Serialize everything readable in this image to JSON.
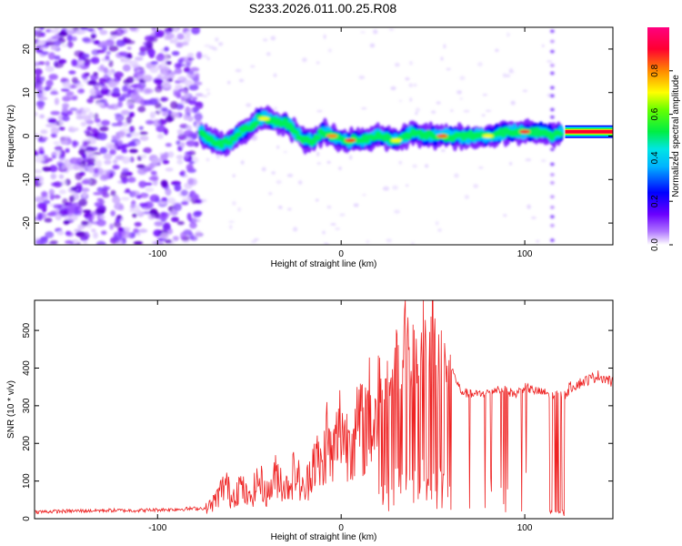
{
  "title": "S233.2026.011.00.25.R08",
  "chart_data": [
    {
      "type": "heatmap",
      "xlabel": "Height of straight line (km)",
      "ylabel": "Frequency (Hz)",
      "xlim": [
        -167,
        148
      ],
      "ylim": [
        -25,
        25
      ],
      "x_ticks": [
        -100,
        0,
        100
      ],
      "y_ticks": [
        -20,
        -10,
        0,
        10,
        20
      ],
      "colorbar": {
        "label": "Normalized spectral amplitude",
        "range": [
          0,
          1
        ],
        "ticks": [
          "0.0",
          "0.2",
          "0.4",
          "0.6",
          "0.8"
        ],
        "colormap": [
          "#ffffff",
          "#7a00ff",
          "#0000ff",
          "#00e5ff",
          "#00ff33",
          "#ffff00",
          "#ff8800",
          "#ff0033",
          "#ff0080"
        ]
      },
      "dominant_frequency_ridge": {
        "x": [
          -75,
          -70,
          -65,
          -60,
          -55,
          -50,
          -45,
          -40,
          -35,
          -30,
          -25,
          -20,
          -15,
          -10,
          -5,
          0,
          10,
          20,
          30,
          40,
          45,
          50,
          60,
          70,
          80,
          90,
          100,
          110,
          115,
          120,
          148
        ],
        "y": [
          0,
          -1,
          -2,
          -1,
          1,
          2,
          4,
          4,
          3,
          3,
          1,
          -1,
          -1,
          1,
          0,
          -1,
          -1,
          0,
          -1,
          1,
          0,
          0,
          0,
          0,
          0,
          1,
          1,
          1,
          0,
          1,
          1
        ]
      },
      "noise_region_x": [
        -167,
        -77
      ]
    },
    {
      "type": "line",
      "xlabel": "Height of straight line (km)",
      "ylabel": "SNR (10 * v/v)",
      "xlim": [
        -167,
        148
      ],
      "ylim": [
        0,
        580
      ],
      "x_ticks": [
        -100,
        0,
        100
      ],
      "y_ticks": [
        0,
        100,
        200,
        300,
        400,
        500
      ],
      "color": "#ee2222",
      "series": {
        "x": [
          -167,
          -150,
          -130,
          -110,
          -90,
          -75,
          -70,
          -65,
          -63,
          -60,
          -55,
          -50,
          -45,
          -40,
          -35,
          -30,
          -25,
          -20,
          -15,
          -10,
          -8,
          -5,
          0,
          3,
          5,
          8,
          10,
          12,
          15,
          18,
          20,
          22,
          25,
          28,
          30,
          32,
          35,
          38,
          40,
          42,
          45,
          47,
          50,
          52,
          55,
          58,
          60,
          65,
          70,
          75,
          80,
          85,
          90,
          95,
          100,
          105,
          110,
          115,
          116,
          118,
          120,
          122,
          125,
          130,
          135,
          140,
          145,
          148
        ],
        "y": [
          18,
          20,
          22,
          22,
          25,
          28,
          50,
          95,
          120,
          70,
          110,
          60,
          130,
          80,
          150,
          100,
          160,
          80,
          210,
          160,
          280,
          190,
          320,
          250,
          300,
          260,
          330,
          280,
          360,
          300,
          400,
          330,
          420,
          340,
          470,
          360,
          500,
          380,
          480,
          360,
          520,
          390,
          560,
          380,
          480,
          350,
          400,
          340,
          330,
          330,
          335,
          345,
          340,
          330,
          350,
          340,
          335,
          330,
          40,
          330,
          40,
          330,
          350,
          360,
          370,
          380,
          370,
          360
        ]
      }
    }
  ]
}
